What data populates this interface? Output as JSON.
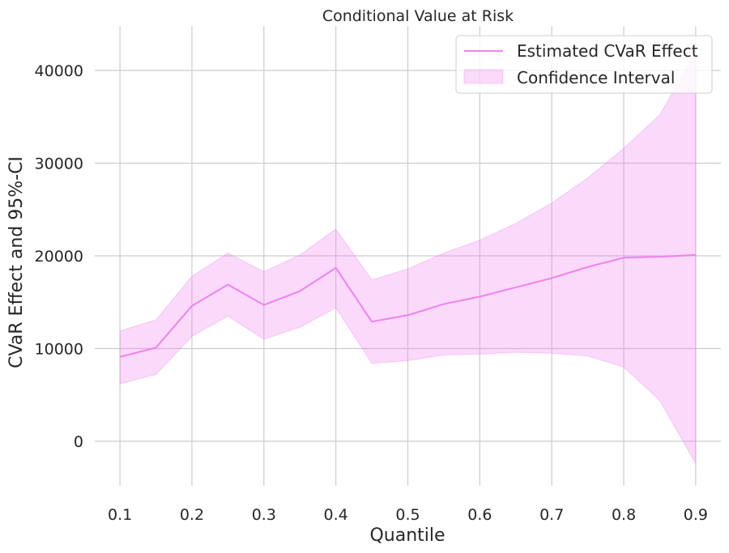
{
  "chart_data": {
    "type": "line",
    "title": "Conditional Value at Risk",
    "xlabel": "Quantile",
    "ylabel": "CVaR Effect and 95%-CI",
    "xlim": [
      0.065,
      0.935
    ],
    "ylim": [
      -4800,
      44800
    ],
    "xticks": [
      0.1,
      0.2,
      0.3,
      0.4,
      0.5,
      0.6,
      0.7,
      0.8,
      0.9
    ],
    "xtick_labels": [
      "0.1",
      "0.2",
      "0.3",
      "0.4",
      "0.5",
      "0.6",
      "0.7",
      "0.8",
      "0.9"
    ],
    "yticks": [
      0,
      10000,
      20000,
      30000,
      40000
    ],
    "ytick_labels": [
      "0",
      "10000",
      "20000",
      "30000",
      "40000"
    ],
    "grid": true,
    "legend_position": "top-right",
    "x": [
      0.1,
      0.15,
      0.2,
      0.25,
      0.3,
      0.35,
      0.4,
      0.45,
      0.5,
      0.55,
      0.6,
      0.65,
      0.7,
      0.75,
      0.8,
      0.85,
      0.9
    ],
    "series": [
      {
        "name": "Estimated CVaR Effect",
        "kind": "line",
        "color": "#ee82ee",
        "values": [
          9100,
          10100,
          14600,
          16900,
          14700,
          16200,
          18700,
          12900,
          13600,
          14800,
          15600,
          16600,
          17600,
          18800,
          19800,
          19900,
          20100
        ]
      },
      {
        "name": "Confidence Interval",
        "kind": "band",
        "color": "#ee82ee",
        "opacity": 0.3,
        "lower": [
          6200,
          7200,
          11300,
          13500,
          11000,
          12300,
          14400,
          8400,
          8700,
          9300,
          9400,
          9600,
          9500,
          9200,
          8000,
          4400,
          -2400
        ],
        "upper": [
          11900,
          13100,
          17800,
          20300,
          18300,
          20100,
          22900,
          17400,
          18600,
          20300,
          21700,
          23500,
          25700,
          28400,
          31600,
          35200,
          42000
        ]
      }
    ]
  }
}
